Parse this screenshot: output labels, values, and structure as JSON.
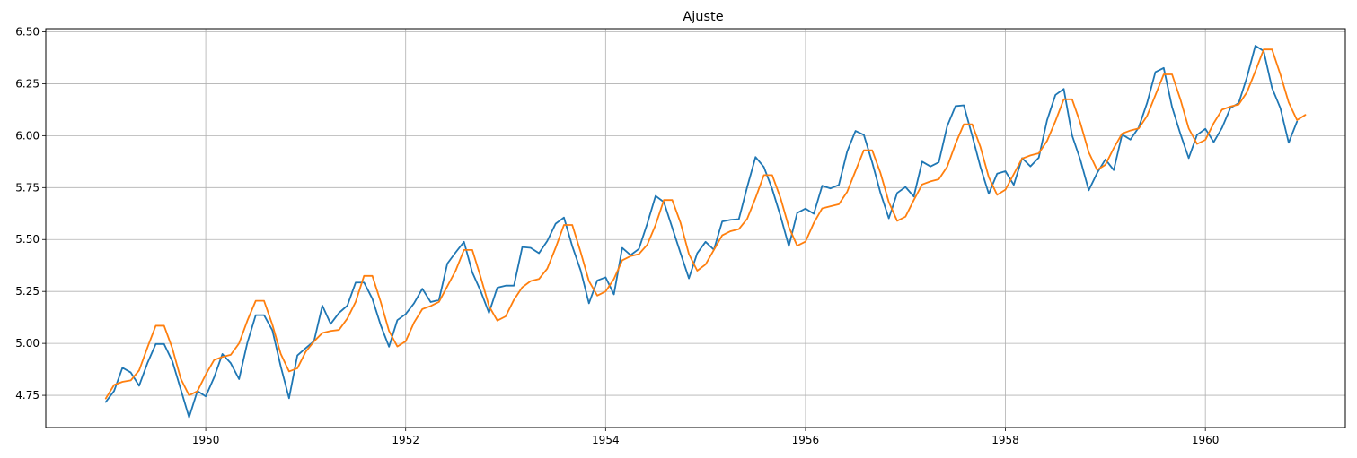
{
  "chart_data": {
    "type": "line",
    "title": "Ajuste",
    "xlabel": "",
    "ylabel": "",
    "xlim": [
      1948.4,
      1961.4
    ],
    "ylim": [
      4.595,
      6.515
    ],
    "x_ticks": [
      1950,
      1952,
      1954,
      1956,
      1958,
      1960
    ],
    "x_tick_labels": [
      "1950",
      "1952",
      "1954",
      "1956",
      "1958",
      "1960"
    ],
    "y_ticks": [
      4.75,
      5.0,
      5.25,
      5.5,
      5.75,
      6.0,
      6.25,
      6.5
    ],
    "y_tick_labels": [
      "4.75",
      "5.00",
      "5.25",
      "5.50",
      "5.75",
      "6.00",
      "6.25",
      "6.50"
    ],
    "grid": true,
    "x_start": "1949-01",
    "x_step": "monthly",
    "series": [
      {
        "color": "#1f77b4",
        "values": [
          4.718,
          4.771,
          4.883,
          4.86,
          4.796,
          4.905,
          4.997,
          4.997,
          4.913,
          4.779,
          4.644,
          4.771,
          4.745,
          4.836,
          4.949,
          4.905,
          4.828,
          5.004,
          5.136,
          5.136,
          5.063,
          4.89,
          4.736,
          4.942,
          4.977,
          5.011,
          5.182,
          5.094,
          5.147,
          5.182,
          5.293,
          5.293,
          5.215,
          5.088,
          4.984,
          5.112,
          5.141,
          5.193,
          5.263,
          5.199,
          5.209,
          5.384,
          5.438,
          5.489,
          5.342,
          5.252,
          5.147,
          5.268,
          5.278,
          5.278,
          5.464,
          5.46,
          5.434,
          5.493,
          5.576,
          5.606,
          5.468,
          5.352,
          5.193,
          5.303,
          5.318,
          5.236,
          5.46,
          5.425,
          5.455,
          5.576,
          5.71,
          5.68,
          5.557,
          5.434,
          5.313,
          5.434,
          5.489,
          5.451,
          5.587,
          5.595,
          5.598,
          5.753,
          5.897,
          5.849,
          5.743,
          5.613,
          5.468,
          5.628,
          5.649,
          5.624,
          5.759,
          5.746,
          5.763,
          5.924,
          6.023,
          6.004,
          5.872,
          5.724,
          5.602,
          5.724,
          5.753,
          5.707,
          5.875,
          5.852,
          5.872,
          6.045,
          6.142,
          6.146,
          6.001,
          5.849,
          5.72,
          5.817,
          5.829,
          5.763,
          5.892,
          5.852,
          5.894,
          6.075,
          6.196,
          6.225,
          6.001,
          5.883,
          5.737,
          5.82,
          5.886,
          5.834,
          6.006,
          5.981,
          6.04,
          6.157,
          6.306,
          6.326,
          6.138,
          6.009,
          5.892,
          6.004,
          6.033,
          5.969,
          6.038,
          6.133,
          6.157,
          6.282,
          6.433,
          6.407,
          6.23,
          6.133,
          5.966,
          6.068
        ]
      },
      {
        "color": "#ff7f0e",
        "values": [
          4.735,
          4.8,
          4.815,
          4.822,
          4.87,
          4.98,
          5.085,
          5.085,
          4.975,
          4.83,
          4.75,
          4.77,
          4.85,
          4.92,
          4.935,
          4.945,
          5.0,
          5.11,
          5.205,
          5.205,
          5.09,
          4.95,
          4.865,
          4.88,
          4.96,
          5.01,
          5.05,
          5.06,
          5.065,
          5.12,
          5.2,
          5.325,
          5.325,
          5.2,
          5.06,
          4.985,
          5.01,
          5.1,
          5.165,
          5.18,
          5.2,
          5.275,
          5.35,
          5.45,
          5.45,
          5.32,
          5.18,
          5.11,
          5.13,
          5.21,
          5.27,
          5.3,
          5.31,
          5.36,
          5.46,
          5.57,
          5.57,
          5.44,
          5.3,
          5.23,
          5.25,
          5.31,
          5.4,
          5.42,
          5.43,
          5.475,
          5.57,
          5.69,
          5.69,
          5.58,
          5.43,
          5.35,
          5.38,
          5.45,
          5.52,
          5.54,
          5.55,
          5.6,
          5.7,
          5.81,
          5.81,
          5.7,
          5.56,
          5.47,
          5.49,
          5.58,
          5.65,
          5.66,
          5.67,
          5.73,
          5.83,
          5.93,
          5.93,
          5.82,
          5.68,
          5.59,
          5.61,
          5.69,
          5.765,
          5.78,
          5.79,
          5.85,
          5.96,
          6.055,
          6.055,
          5.945,
          5.8,
          5.715,
          5.74,
          5.815,
          5.89,
          5.905,
          5.915,
          5.975,
          6.07,
          6.175,
          6.175,
          6.06,
          5.92,
          5.835,
          5.86,
          5.94,
          6.01,
          6.025,
          6.035,
          6.095,
          6.195,
          6.295,
          6.295,
          6.175,
          6.035,
          5.96,
          5.98,
          6.06,
          6.125,
          6.14,
          6.15,
          6.21,
          6.31,
          6.415,
          6.415,
          6.295,
          6.16,
          6.075,
          6.1
        ]
      }
    ]
  }
}
